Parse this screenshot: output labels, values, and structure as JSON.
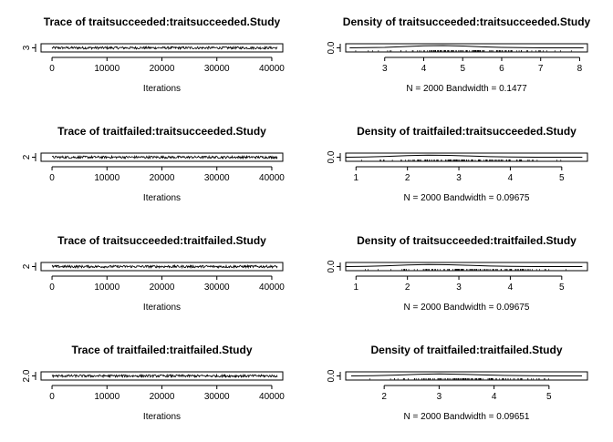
{
  "chart_data": [
    {
      "type": "line",
      "title": "Trace of traitsucceeded:traitsucceeded.Study",
      "xlabel": "Iterations",
      "ylabel": "",
      "xlim": [
        -2000,
        42000
      ],
      "ylim": [
        2.9,
        3.1
      ],
      "xticks": [
        0,
        10000,
        20000,
        30000,
        40000
      ],
      "xtick_labels": [
        "0",
        "10000",
        "20000",
        "30000",
        "40000"
      ],
      "yticks": [
        3
      ],
      "ytick_labels": [
        "3"
      ],
      "series": [
        {
          "x_start": 1,
          "x_end": 41000,
          "value_min": 2.97,
          "value_max": 3.03
        }
      ]
    },
    {
      "type": "area",
      "title": "Density of traitsucceeded:traitsucceeded.Study",
      "xlabel": "N = 2000   Bandwidth = 0.1477",
      "ylabel": "",
      "xlim": [
        2.0,
        8.2
      ],
      "ylim": [
        -0.02,
        0.02
      ],
      "xticks": [
        3,
        4,
        5,
        6,
        7,
        8
      ],
      "xtick_labels": [
        "3",
        "4",
        "5",
        "6",
        "7",
        "8"
      ],
      "yticks": [
        0.0
      ],
      "ytick_labels": [
        "0.0"
      ],
      "series": [
        {
          "x": [
            2.1,
            3.0,
            3.5,
            4.0,
            4.5,
            5.0,
            5.5,
            6.0,
            6.5,
            7.0,
            7.5,
            8.1
          ],
          "y": [
            0.0,
            0.002,
            0.006,
            0.01,
            0.011,
            0.009,
            0.005,
            0.002,
            0.001,
            0.0,
            0.0,
            0.0
          ]
        }
      ]
    },
    {
      "type": "line",
      "title": "Trace of traitfailed:traitsucceeded.Study",
      "xlabel": "Iterations",
      "ylabel": "",
      "xlim": [
        -2000,
        42000
      ],
      "ylim": [
        1.9,
        2.1
      ],
      "xticks": [
        0,
        10000,
        20000,
        30000,
        40000
      ],
      "xtick_labels": [
        "0",
        "10000",
        "20000",
        "30000",
        "40000"
      ],
      "yticks": [
        2
      ],
      "ytick_labels": [
        "2"
      ],
      "series": [
        {
          "x_start": 1,
          "x_end": 41000,
          "value_min": 1.97,
          "value_max": 2.03
        }
      ]
    },
    {
      "type": "area",
      "title": "Density of traitfailed:traitsucceeded.Study",
      "xlabel": "N = 2000   Bandwidth = 0.09675",
      "ylabel": "",
      "xlim": [
        0.8,
        5.5
      ],
      "ylim": [
        -0.02,
        0.02
      ],
      "xticks": [
        1,
        2,
        3,
        4,
        5
      ],
      "xtick_labels": [
        "1",
        "2",
        "3",
        "4",
        "5"
      ],
      "yticks": [
        0.0
      ],
      "ytick_labels": [
        "0.0"
      ],
      "series": [
        {
          "x": [
            0.8,
            1.2,
            1.6,
            2.0,
            2.4,
            2.8,
            3.2,
            3.6,
            4.0,
            4.5,
            5.0,
            5.4
          ],
          "y": [
            0.0,
            0.001,
            0.004,
            0.008,
            0.01,
            0.009,
            0.006,
            0.003,
            0.001,
            0.0,
            0.0,
            0.0
          ]
        }
      ]
    },
    {
      "type": "line",
      "title": "Trace of traitsucceeded:traitfailed.Study",
      "xlabel": "Iterations",
      "ylabel": "",
      "xlim": [
        -2000,
        42000
      ],
      "ylim": [
        1.9,
        2.1
      ],
      "xticks": [
        0,
        10000,
        20000,
        30000,
        40000
      ],
      "xtick_labels": [
        "0",
        "10000",
        "20000",
        "30000",
        "40000"
      ],
      "yticks": [
        2
      ],
      "ytick_labels": [
        "2"
      ],
      "series": [
        {
          "x_start": 1,
          "x_end": 41000,
          "value_min": 1.97,
          "value_max": 2.03
        }
      ]
    },
    {
      "type": "area",
      "title": "Density of traitsucceeded:traitfailed.Study",
      "xlabel": "N = 2000   Bandwidth = 0.09675",
      "ylabel": "",
      "xlim": [
        0.8,
        5.5
      ],
      "ylim": [
        -0.02,
        0.02
      ],
      "xticks": [
        1,
        2,
        3,
        4,
        5
      ],
      "xtick_labels": [
        "1",
        "2",
        "3",
        "4",
        "5"
      ],
      "yticks": [
        0.0
      ],
      "ytick_labels": [
        "0.0"
      ],
      "series": [
        {
          "x": [
            0.8,
            1.2,
            1.6,
            2.0,
            2.4,
            2.8,
            3.2,
            3.6,
            4.0,
            4.5,
            5.0,
            5.4
          ],
          "y": [
            0.0,
            0.001,
            0.004,
            0.008,
            0.01,
            0.009,
            0.006,
            0.003,
            0.001,
            0.0,
            0.0,
            0.0
          ]
        }
      ]
    },
    {
      "type": "line",
      "title": "Trace of traitfailed:traitfailed.Study",
      "xlabel": "Iterations",
      "ylabel": "",
      "xlim": [
        -2000,
        42000
      ],
      "ylim": [
        1.9,
        2.1
      ],
      "xticks": [
        0,
        10000,
        20000,
        30000,
        40000
      ],
      "xtick_labels": [
        "0",
        "10000",
        "20000",
        "30000",
        "40000"
      ],
      "yticks": [
        2.0
      ],
      "ytick_labels": [
        "2.0"
      ],
      "series": [
        {
          "x_start": 1,
          "x_end": 41000,
          "value_min": 1.97,
          "value_max": 2.03
        }
      ]
    },
    {
      "type": "area",
      "title": "Density of traitfailed:traitfailed.Study",
      "xlabel": "N = 2000   Bandwidth = 0.09651",
      "ylabel": "",
      "xlim": [
        1.3,
        5.7
      ],
      "ylim": [
        -0.02,
        0.02
      ],
      "xticks": [
        2,
        3,
        4,
        5
      ],
      "xtick_labels": [
        "2",
        "3",
        "4",
        "5"
      ],
      "yticks": [
        0.0
      ],
      "ytick_labels": [
        "0.0"
      ],
      "series": [
        {
          "x": [
            1.4,
            1.8,
            2.2,
            2.6,
            3.0,
            3.4,
            3.8,
            4.2,
            4.6,
            5.0,
            5.6
          ],
          "y": [
            0.0,
            0.001,
            0.004,
            0.008,
            0.01,
            0.008,
            0.005,
            0.002,
            0.001,
            0.0,
            0.0
          ]
        }
      ]
    }
  ]
}
